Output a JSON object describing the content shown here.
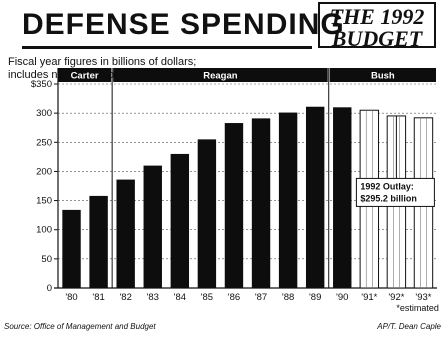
{
  "header": {
    "title": "DEFENSE SPENDING",
    "badge_line1": "THE 1992",
    "badge_line2": "BUDGET"
  },
  "subtitle_line1": "Fiscal year figures in billions of dollars;",
  "subtitle_line2": "includes non-Pentagon spending",
  "footer": {
    "source": "Source: Office of Management and Budget",
    "credit": "AP/T. Dean Caple"
  },
  "colors": {
    "bar": "#0d0d0d",
    "band": "#0d0d0d",
    "band_text": "#ffffff",
    "grid": "#555555"
  },
  "chart_data": {
    "type": "bar",
    "title": "DEFENSE SPENDING",
    "ylabel": "",
    "xlabel": "",
    "ylim": [
      0,
      350
    ],
    "yticks": [
      0,
      50,
      100,
      150,
      200,
      250,
      300,
      350
    ],
    "ytick_labels": [
      "0",
      "50",
      "100",
      "150",
      "200",
      "250",
      "300",
      "$350"
    ],
    "grid": true,
    "categories": [
      "'80",
      "'81",
      "'82",
      "'83",
      "'84",
      "'85",
      "'86",
      "'87",
      "'88",
      "'89",
      "'90",
      "'91*",
      "'92*",
      "'93*"
    ],
    "values": [
      134,
      158,
      186,
      210,
      230,
      255,
      283,
      291,
      301,
      311,
      310,
      305,
      295.2,
      292
    ],
    "estimated": [
      false,
      false,
      false,
      false,
      false,
      false,
      false,
      false,
      false,
      false,
      false,
      true,
      true,
      true
    ],
    "administrations": [
      {
        "name": "Carter",
        "from": 0,
        "to": 1
      },
      {
        "name": "Reagan",
        "from": 2,
        "to": 9
      },
      {
        "name": "Bush",
        "from": 10,
        "to": 13
      }
    ],
    "annotation": "1992 Outlay: $295.2 billion",
    "annotation_line1": "1992 Outlay:",
    "annotation_line2": "$295.2 billion",
    "footnote": "*estimated"
  }
}
